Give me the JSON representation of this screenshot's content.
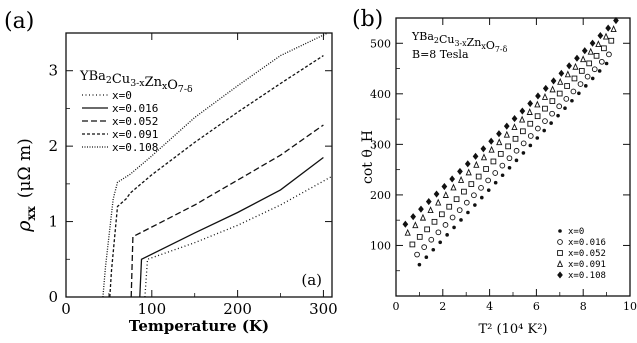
{
  "figure": {
    "panel_a_label": "(a)",
    "panel_b_label": "(b)"
  },
  "chart_data": [
    {
      "type": "line",
      "panel": "(a)",
      "inner_label": "(a)",
      "title_lines": [
        {
          "parts": [
            [
              "Y",
              ""
            ],
            [
              "Ba",
              "2"
            ],
            [
              "Cu",
              "3-x"
            ],
            [
              "Zn",
              "x"
            ],
            [
              "O",
              "7-δ"
            ]
          ]
        }
      ],
      "xlabel": "Temperature (K)",
      "ylabel_main": "ρ",
      "ylabel_sub": "xx",
      "ylabel_unit": "(μΩ m)",
      "xlim": [
        0,
        310
      ],
      "ylim": [
        0,
        3.5
      ],
      "xticks": [
        0,
        100,
        200,
        300
      ],
      "yticks": [
        0,
        1,
        2,
        3
      ],
      "legend_position": "upper-left",
      "grid": false,
      "series": [
        {
          "name": "x=0",
          "dash": "1,2.5",
          "points": [
            [
              92,
              0
            ],
            [
              95,
              0.5
            ],
            [
              150,
              0.72
            ],
            [
              200,
              0.95
            ],
            [
              250,
              1.22
            ],
            [
              310,
              1.6
            ]
          ]
        },
        {
          "name": "x=0.016",
          "dash": "",
          "points": [
            [
              86,
              0
            ],
            [
              88,
              0.5
            ],
            [
              150,
              0.85
            ],
            [
              200,
              1.12
            ],
            [
              250,
              1.42
            ],
            [
              300,
              1.85
            ]
          ]
        },
        {
          "name": "x=0.052",
          "dash": "6,3",
          "points": [
            [
              76,
              0
            ],
            [
              78,
              0.8
            ],
            [
              150,
              1.22
            ],
            [
              200,
              1.55
            ],
            [
              250,
              1.88
            ],
            [
              300,
              2.28
            ]
          ]
        },
        {
          "name": "x=0.091",
          "dash": "3,2",
          "points": [
            [
              51,
              0
            ],
            [
              53,
              0.35
            ],
            [
              60,
              1.2
            ],
            [
              70,
              1.3
            ],
            [
              75,
              1.38
            ],
            [
              100,
              1.62
            ],
            [
              150,
              2.05
            ],
            [
              200,
              2.45
            ],
            [
              250,
              2.83
            ],
            [
              300,
              3.2
            ]
          ]
        },
        {
          "name": "x=0.108",
          "dash": "1,1.5",
          "points": [
            [
              43,
              0
            ],
            [
              46,
              0.4
            ],
            [
              55,
              1.3
            ],
            [
              60,
              1.52
            ],
            [
              75,
              1.63
            ],
            [
              100,
              1.87
            ],
            [
              150,
              2.38
            ],
            [
              200,
              2.8
            ],
            [
              250,
              3.2
            ],
            [
              305,
              3.55
            ]
          ]
        }
      ]
    },
    {
      "type": "scatter",
      "panel": "(b)",
      "title_lines": [
        {
          "parts": [
            [
              "Y",
              ""
            ],
            [
              "Ba",
              "2"
            ],
            [
              "Cu",
              "3-x"
            ],
            [
              "Zn",
              "x"
            ],
            [
              "O",
              "7-δ"
            ]
          ]
        },
        {
          "parts": [
            [
              "B=8 Tesla",
              ""
            ]
          ]
        }
      ],
      "xlabel": "T² (10⁴ K²)",
      "ylabel": "cot θ_H",
      "xlim": [
        0,
        10
      ],
      "ylim": [
        0,
        550
      ],
      "xticks": [
        0,
        2,
        4,
        6,
        8,
        10
      ],
      "yticks": [
        100,
        200,
        300,
        400,
        500
      ],
      "legend_position": "lower-right",
      "grid": false,
      "series": [
        {
          "name": "x=0",
          "marker": "star",
          "x_start": 1.0,
          "x_end": 9.0,
          "y_start": 62,
          "y_end": 460
        },
        {
          "name": "x=0.016",
          "marker": "circle",
          "x_start": 0.9,
          "x_end": 9.1,
          "y_start": 82,
          "y_end": 478
        },
        {
          "name": "x=0.052",
          "marker": "square",
          "x_start": 0.7,
          "x_end": 9.2,
          "y_start": 102,
          "y_end": 505
        },
        {
          "name": "x=0.091",
          "marker": "triangle",
          "x_start": 0.5,
          "x_end": 9.3,
          "y_start": 125,
          "y_end": 528
        },
        {
          "name": "x=0.108",
          "marker": "diamond",
          "x_start": 0.4,
          "x_end": 9.4,
          "y_start": 142,
          "y_end": 545
        }
      ]
    }
  ]
}
